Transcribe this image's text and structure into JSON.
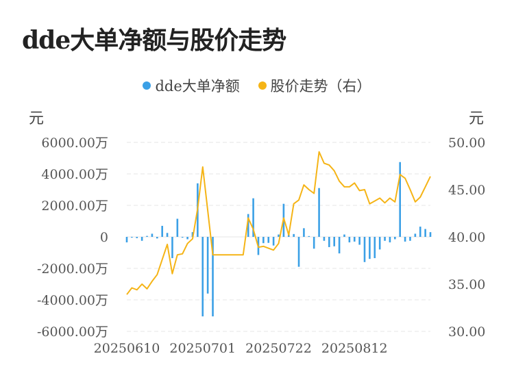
{
  "title": "dde大单净额与股价走势",
  "legend": [
    {
      "label": "dde大单净额",
      "color": "#3ba0e6"
    },
    {
      "label": "股价走势（右）",
      "color": "#f5b416"
    }
  ],
  "chart_data": {
    "type": "bar+line",
    "title": "dde大单净额与股价走势",
    "left_unit": "元",
    "right_unit": "元",
    "left_axis": {
      "min": -6000,
      "max": 6000,
      "ticks": [
        "-6000.00万",
        "-4000.00万",
        "-2000.00万",
        "0",
        "2000.00万",
        "4000.00万",
        "6000.00万"
      ]
    },
    "right_axis": {
      "min": 30,
      "max": 50,
      "ticks": [
        "30.00",
        "35.00",
        "40.00",
        "45.00",
        "50.00"
      ]
    },
    "x_labels": [
      {
        "label": "20250610",
        "index": 0
      },
      {
        "label": "20250701",
        "index": 15
      },
      {
        "label": "20250722",
        "index": 30
      },
      {
        "label": "20250812",
        "index": 45
      }
    ],
    "bar_color": "#3ba0e6",
    "line_color": "#f5b416",
    "grid": true,
    "series": [
      {
        "name": "dde大单净额",
        "unit": "万",
        "values": [
          -350,
          -50,
          -80,
          -250,
          60,
          200,
          -100,
          700,
          250,
          -1350,
          1150,
          -50,
          -150,
          300,
          3400,
          -5050,
          -3600,
          -5050,
          0,
          0,
          0,
          0,
          0,
          0,
          1450,
          2450,
          -1150,
          -400,
          -380,
          -550,
          150,
          2100,
          300,
          180,
          -1900,
          550,
          50,
          -750,
          3100,
          -250,
          -650,
          -600,
          -1050,
          150,
          -350,
          -300,
          -500,
          -1600,
          -1400,
          -1350,
          -800,
          -250,
          -350,
          -150,
          4750,
          -300,
          -250,
          200,
          650,
          500,
          300
        ]
      },
      {
        "name": "股价走势（右）",
        "unit": "元",
        "values": [
          33.9,
          34.6,
          34.4,
          35.0,
          34.5,
          35.3,
          36.0,
          37.6,
          39.2,
          36.1,
          38.1,
          38.2,
          39.3,
          39.8,
          43.0,
          47.4,
          42.8,
          38.1,
          38.1,
          38.1,
          38.1,
          38.1,
          38.1,
          38.1,
          42.0,
          40.8,
          38.9,
          39.0,
          38.8,
          38.6,
          39.3,
          42.0,
          40.2,
          43.5,
          43.9,
          45.5,
          45.0,
          44.6,
          49.0,
          47.8,
          47.6,
          47.0,
          45.9,
          45.3,
          45.3,
          45.7,
          44.9,
          45.0,
          43.5,
          43.8,
          44.1,
          43.6,
          44.1,
          43.7,
          46.6,
          46.2,
          45.0,
          43.7,
          44.2,
          45.3,
          46.4
        ]
      }
    ]
  }
}
